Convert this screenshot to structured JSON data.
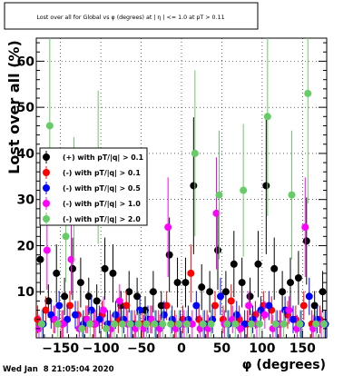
{
  "chart_data": {
    "type": "scatter",
    "title": "Lost over all for Global vs φ (degrees) at | η | <= 1.0 at pT > 0.11",
    "xlabel": "φ (degrees)",
    "ylabel": "Lost over all (%)",
    "xlim": [
      -180,
      180
    ],
    "ylim": [
      0,
      65
    ],
    "x_ticks": [
      -150,
      -100,
      -50,
      0,
      50,
      100,
      150
    ],
    "y_ticks": [
      0,
      10,
      20,
      30,
      40,
      50,
      60
    ],
    "grid": true,
    "legend_position": "left",
    "timestamp": "Wed Jan  8 21:05:04 2020",
    "series": [
      {
        "name": "(+) with pT/|q| > 0.1",
        "color": "#000000",
        "x": [
          -175,
          -165,
          -155,
          -145,
          -135,
          -125,
          -115,
          -105,
          -95,
          -85,
          -75,
          -65,
          -55,
          -45,
          -35,
          -25,
          -15,
          -5,
          5,
          15,
          25,
          35,
          45,
          55,
          65,
          75,
          85,
          95,
          105,
          115,
          125,
          135,
          145,
          155,
          165,
          175
        ],
        "y": [
          17,
          8,
          14,
          9,
          15,
          12,
          9,
          8,
          15,
          14,
          7,
          10,
          9,
          6,
          10,
          7,
          18,
          12,
          12,
          33,
          11,
          10,
          19,
          10,
          16,
          12,
          9,
          16,
          33,
          15,
          10,
          12,
          13,
          21,
          7,
          10
        ]
      },
      {
        "name": "(-) with pT/|q| > 0.1",
        "color": "#ff0000",
        "x": [
          -175,
          -165,
          -155,
          -145,
          -135,
          -125,
          -115,
          -105,
          -95,
          -85,
          -75,
          -65,
          -55,
          -45,
          -35,
          -25,
          -15,
          -5,
          5,
          15,
          25,
          35,
          45,
          55,
          65,
          75,
          85,
          95,
          105,
          115,
          125,
          135,
          145,
          155,
          165,
          175
        ],
        "y": [
          4,
          6,
          4,
          3,
          7,
          5,
          4,
          3,
          5,
          3,
          4,
          7,
          3,
          3,
          4,
          3,
          7,
          3,
          4,
          14,
          4,
          3,
          7,
          4,
          8,
          4,
          3,
          5,
          7,
          6,
          3,
          5,
          4,
          7,
          3,
          4
        ]
      },
      {
        "name": "(-) with pT/|q| > 0.5",
        "color": "#0000ff",
        "x": [
          -175,
          -165,
          -155,
          -145,
          -135,
          -125,
          -115,
          -105,
          -95,
          -85,
          -75,
          -65,
          -55,
          -45,
          -35,
          -25,
          -15,
          -5,
          5,
          15,
          25,
          35,
          45,
          55,
          65,
          75,
          85,
          95,
          105,
          115,
          125,
          135,
          145,
          155,
          165,
          175
        ],
        "y": [
          3,
          5,
          7,
          4,
          5,
          3,
          6,
          4,
          3,
          5,
          4,
          3,
          6,
          4,
          3,
          5,
          4,
          3,
          4,
          7,
          3,
          4,
          9,
          3,
          5,
          3,
          4,
          6,
          7,
          3,
          6,
          4,
          3,
          9,
          4,
          3
        ]
      },
      {
        "name": "(-) with pT/|q| > 1.0",
        "color": "#ff00ff",
        "x": [
          -175,
          -165,
          -155,
          -145,
          -135,
          -125,
          -115,
          -105,
          -95,
          -85,
          -75,
          -65,
          -55,
          -45,
          -35,
          -25,
          -15,
          -5,
          5,
          15,
          25,
          35,
          45,
          55,
          65,
          75,
          85,
          95,
          105,
          115,
          125,
          135,
          145,
          155,
          165,
          175
        ],
        "y": [
          2,
          19,
          4,
          3,
          17,
          2,
          4,
          3,
          6,
          2,
          8,
          3,
          2,
          2,
          4,
          2,
          24,
          2,
          3,
          3,
          2,
          2,
          27,
          3,
          4,
          2,
          7,
          3,
          5,
          2,
          3,
          6,
          2,
          24,
          2,
          3
        ]
      },
      {
        "name": "(-) with pT/|q| > 2.0",
        "color": "#66cc66",
        "x": [
          -175,
          -165,
          -155,
          -145,
          -135,
          -125,
          -115,
          -105,
          -95,
          -85,
          -75,
          -65,
          -55,
          -45,
          -35,
          -25,
          -15,
          -5,
          5,
          15,
          25,
          35,
          45,
          55,
          65,
          75,
          85,
          95,
          105,
          115,
          125,
          135,
          145,
          155,
          165,
          175
        ],
        "y": [
          3,
          46,
          3,
          22,
          30,
          2,
          3,
          37,
          2,
          3,
          3,
          3,
          3,
          3,
          3,
          3,
          3,
          3,
          3,
          40,
          3,
          3,
          31,
          3,
          3,
          32,
          3,
          3,
          48,
          3,
          3,
          31,
          3,
          53,
          3,
          3
        ]
      }
    ]
  }
}
